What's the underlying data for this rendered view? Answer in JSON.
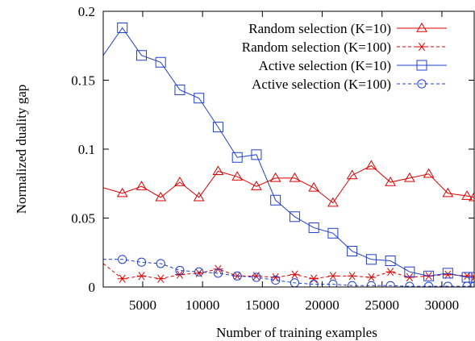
{
  "chart_data": {
    "type": "line",
    "xlabel": "Number of training examples",
    "ylabel": "Normalized duality gap",
    "xlim": [
      1700,
      32700
    ],
    "ylim": [
      0,
      0.2
    ],
    "xticks": [
      5000,
      10000,
      15000,
      20000,
      25000,
      30000
    ],
    "yticks": [
      0,
      0.05,
      0.1,
      0.15,
      0.2
    ],
    "ytick_labels": [
      "0",
      "0.05",
      "0.1",
      "0.15",
      "0.2"
    ],
    "grid": false,
    "legend_position": "top-right",
    "series": [
      {
        "name": "Random selection (K=10)",
        "color": "#e00000",
        "line": "solid",
        "marker": "triangle",
        "x": [
          1700,
          3300,
          4900,
          6500,
          8100,
          9700,
          11300,
          12900,
          14500,
          16100,
          17700,
          19300,
          20900,
          22500,
          24100,
          25700,
          27300,
          28900,
          30500,
          32100,
          32700
        ],
        "y": [
          0.072,
          0.068,
          0.073,
          0.065,
          0.076,
          0.065,
          0.084,
          0.08,
          0.073,
          0.079,
          0.079,
          0.072,
          0.061,
          0.081,
          0.088,
          0.076,
          0.079,
          0.082,
          0.068,
          0.066,
          0.065
        ]
      },
      {
        "name": "Random selection (K=100)",
        "color": "#e00000",
        "line": "dashed",
        "marker": "asterisk",
        "x": [
          1700,
          3300,
          4900,
          6500,
          8100,
          9700,
          11300,
          12900,
          14500,
          16100,
          17700,
          19300,
          20900,
          22500,
          24100,
          25700,
          27300,
          28900,
          30500,
          32100,
          32700
        ],
        "y": [
          0.017,
          0.006,
          0.008,
          0.006,
          0.009,
          0.01,
          0.013,
          0.008,
          0.008,
          0.007,
          0.009,
          0.006,
          0.008,
          0.008,
          0.007,
          0.011,
          0.007,
          0.008,
          0.009,
          0.008,
          0.007
        ]
      },
      {
        "name": "Active selection (K=10)",
        "color": "#1f3fd0",
        "line": "solid",
        "marker": "square",
        "x": [
          1700,
          3300,
          4900,
          6500,
          8100,
          9700,
          11300,
          12900,
          14500,
          16100,
          17700,
          19300,
          20900,
          22500,
          24100,
          25700,
          27300,
          28900,
          30500,
          32100,
          32700
        ],
        "y": [
          0.168,
          0.188,
          0.168,
          0.163,
          0.143,
          0.137,
          0.116,
          0.094,
          0.096,
          0.063,
          0.051,
          0.043,
          0.039,
          0.026,
          0.02,
          0.019,
          0.011,
          0.008,
          0.01,
          0.007,
          0.007
        ]
      },
      {
        "name": "Active selection (K=100)",
        "color": "#1f3fd0",
        "line": "dashed",
        "marker": "circle",
        "x": [
          1700,
          3300,
          4900,
          6500,
          8100,
          9700,
          11300,
          12900,
          14500,
          16100,
          17700,
          19300,
          20900,
          22500,
          24100,
          25700,
          27300,
          28900,
          30500,
          32100,
          32700
        ],
        "y": [
          0.02,
          0.02,
          0.018,
          0.017,
          0.012,
          0.011,
          0.01,
          0.008,
          0.007,
          0.005,
          0.003,
          0.002,
          0.002,
          0.001,
          0.001,
          0.001,
          0.0005,
          0.0005,
          0.0005,
          0.0005,
          0.0005
        ]
      }
    ]
  }
}
